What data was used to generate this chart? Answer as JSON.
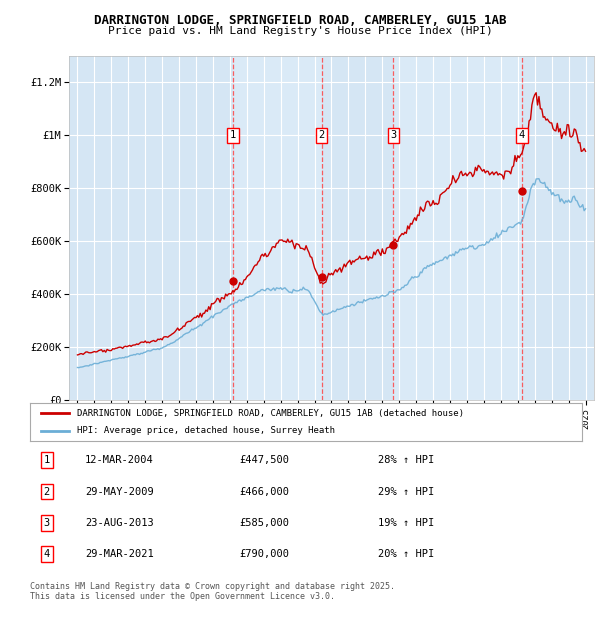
{
  "title_line1": "DARRINGTON LODGE, SPRINGFIELD ROAD, CAMBERLEY, GU15 1AB",
  "title_line2": "Price paid vs. HM Land Registry's House Price Index (HPI)",
  "ylim": [
    0,
    1300000
  ],
  "yticks": [
    0,
    200000,
    400000,
    600000,
    800000,
    1000000,
    1200000
  ],
  "ytick_labels": [
    "£0",
    "£200K",
    "£400K",
    "£600K",
    "£800K",
    "£1M",
    "£1.2M"
  ],
  "xlim_start": 1994.5,
  "xlim_end": 2025.5,
  "background_color": "#daeaf7",
  "grid_color": "#ffffff",
  "red_line_color": "#cc0000",
  "blue_line_color": "#6baed6",
  "sale_dates": [
    2004.19,
    2009.41,
    2013.65,
    2021.24
  ],
  "sale_prices": [
    447500,
    466000,
    585000,
    790000
  ],
  "sale_labels": [
    "1",
    "2",
    "3",
    "4"
  ],
  "vline_color": "#ff4444",
  "legend_entries": [
    "DARRINGTON LODGE, SPRINGFIELD ROAD, CAMBERLEY, GU15 1AB (detached house)",
    "HPI: Average price, detached house, Surrey Heath"
  ],
  "table_data": [
    [
      "1",
      "12-MAR-2004",
      "£447,500",
      "28% ↑ HPI"
    ],
    [
      "2",
      "29-MAY-2009",
      "£466,000",
      "29% ↑ HPI"
    ],
    [
      "3",
      "23-AUG-2013",
      "£585,000",
      "19% ↑ HPI"
    ],
    [
      "4",
      "29-MAR-2021",
      "£790,000",
      "20% ↑ HPI"
    ]
  ],
  "footnote": "Contains HM Land Registry data © Crown copyright and database right 2025.\nThis data is licensed under the Open Government Licence v3.0."
}
